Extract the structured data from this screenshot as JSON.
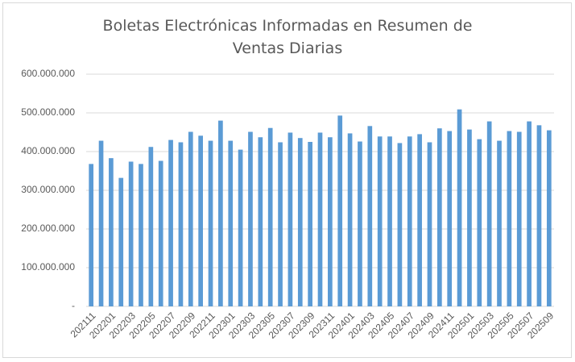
{
  "chart_data": {
    "type": "bar",
    "title": "Boletas Electrónicas Informadas en Resumen de Ventas Diarias",
    "categories": [
      "202111",
      null,
      "202201",
      null,
      "202203",
      null,
      "202205",
      null,
      "202207",
      null,
      "202209",
      null,
      "202211",
      null,
      "202301",
      null,
      "202303",
      null,
      "202305",
      null,
      "202307",
      null,
      "202309",
      null,
      "202311",
      null,
      "202401",
      null,
      "202403",
      null,
      "202405",
      null,
      "202407",
      null,
      "202409",
      null,
      "202411",
      null,
      "202501",
      null,
      "202503",
      null,
      "202505",
      null,
      "202507",
      null,
      "202509"
    ],
    "values": [
      368000000,
      428000000,
      383000000,
      332000000,
      374000000,
      368000000,
      412000000,
      376000000,
      430000000,
      424000000,
      451000000,
      441000000,
      428000000,
      480000000,
      428000000,
      405000000,
      451000000,
      437000000,
      461000000,
      424000000,
      449000000,
      435000000,
      425000000,
      449000000,
      437000000,
      493000000,
      447000000,
      426000000,
      466000000,
      439000000,
      439000000,
      422000000,
      439000000,
      445000000,
      424000000,
      460000000,
      453000000,
      509000000,
      457000000,
      432000000,
      478000000,
      428000000,
      453000000,
      451000000,
      478000000,
      468000000,
      455000000
    ],
    "color": "#5b9bd5",
    "ylim": [
      0,
      600000000
    ],
    "yticks": [
      {
        "value": 0,
        "label": "-"
      },
      {
        "value": 100000000,
        "label": "100.000.000"
      },
      {
        "value": 200000000,
        "label": "200.000.000"
      },
      {
        "value": 300000000,
        "label": "300.000.000"
      },
      {
        "value": 400000000,
        "label": "400.000.000"
      },
      {
        "value": 500000000,
        "label": "500.000.000"
      },
      {
        "value": 600000000,
        "label": "600.000.000"
      }
    ],
    "grid": true
  }
}
